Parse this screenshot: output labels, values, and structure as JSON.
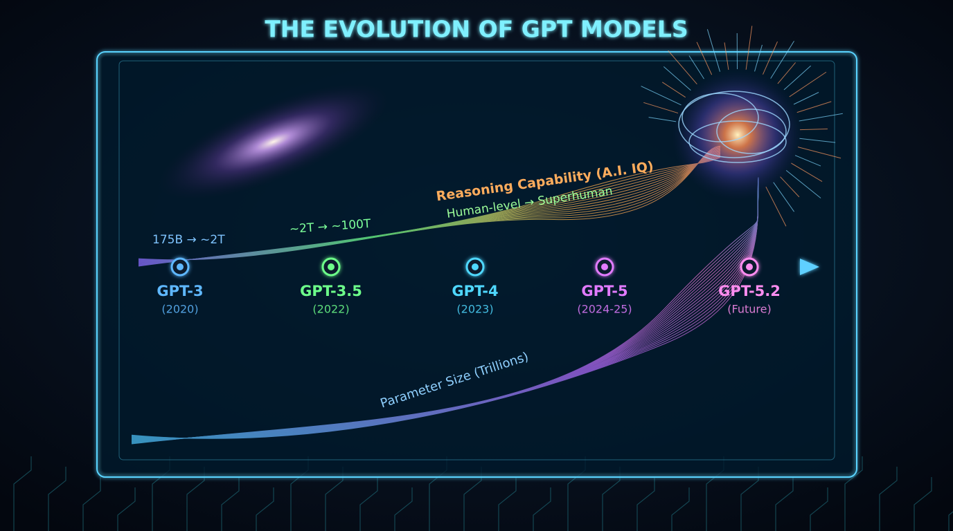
{
  "title": "THE EVOLUTION OF GPT MODELS",
  "timeline": [
    {
      "model": "GPT-3",
      "year": "(2020)",
      "color": "#5fb8ff"
    },
    {
      "model": "GPT-3.5",
      "year": "(2022)",
      "color": "#6dff8a"
    },
    {
      "model": "GPT-4",
      "year": "(2023)",
      "color": "#4fd8ff"
    },
    {
      "model": "GPT-5",
      "year": "(2024-25)",
      "color": "#e27bff"
    },
    {
      "model": "GPT-5.2",
      "year": "(Future)",
      "color": "#ff8df0"
    }
  ],
  "annotations": {
    "params_early": "175B → ~2T",
    "params_mid": "~2T → ~100T",
    "reasoning_title": "Reasoning Capability (A.I. IQ)",
    "reasoning_subtitle": "Human-level → Superhuman",
    "parameter_label": "Parameter Size (Trillions)"
  }
}
